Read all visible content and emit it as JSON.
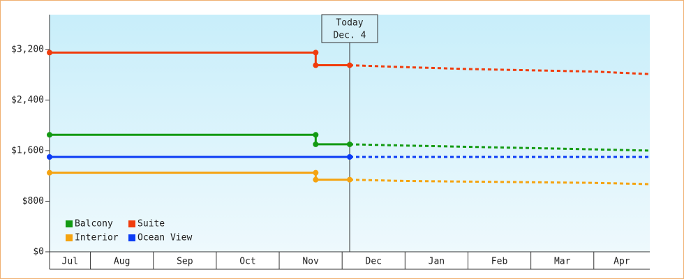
{
  "chart_data": {
    "type": "line",
    "categories": [
      "Jul",
      "Aug",
      "Sep",
      "Oct",
      "Nov",
      "Dec",
      "Jan",
      "Feb",
      "Mar",
      "Apr"
    ],
    "xlim": [
      0.35,
      9.89
    ],
    "ylim": [
      0,
      3750
    ],
    "yticks": [
      {
        "value": 0,
        "label": "$0"
      },
      {
        "value": 800,
        "label": "$800"
      },
      {
        "value": 1600,
        "label": "$1,600"
      },
      {
        "value": 2400,
        "label": "$2,400"
      },
      {
        "value": 3200,
        "label": "$3,200"
      }
    ],
    "annotation": {
      "lines": [
        "Today",
        "Dec. 4"
      ],
      "x": 5.12
    },
    "legend": "lower left",
    "series": [
      {
        "name": "Balcony",
        "color": "#139a13",
        "actual": {
          "x": [
            0.35,
            4.58,
            4.58,
            5.12
          ],
          "values": [
            1850,
            1850,
            1700,
            1700
          ]
        },
        "forecast": {
          "x": [
            5.12,
            6,
            7,
            8,
            9,
            9.89
          ],
          "values": [
            1700,
            1680,
            1660,
            1640,
            1620,
            1600
          ]
        }
      },
      {
        "name": "Suite",
        "color": "#f03c0c",
        "actual": {
          "x": [
            0.35,
            4.58,
            4.58,
            5.12
          ],
          "values": [
            3150,
            3150,
            2950,
            2950
          ]
        },
        "forecast": {
          "x": [
            5.12,
            6,
            7,
            8,
            9,
            9.89
          ],
          "values": [
            2950,
            2920,
            2890,
            2870,
            2850,
            2810
          ]
        }
      },
      {
        "name": "Interior",
        "color": "#f5a310",
        "actual": {
          "x": [
            0.35,
            4.58,
            4.58,
            5.12
          ],
          "values": [
            1250,
            1250,
            1140,
            1140
          ]
        },
        "forecast": {
          "x": [
            5.12,
            6,
            7,
            8,
            9,
            9.89
          ],
          "values": [
            1140,
            1120,
            1110,
            1100,
            1090,
            1070
          ]
        }
      },
      {
        "name": "Ocean View",
        "color": "#0b3cf5",
        "actual": {
          "x": [
            0.35,
            5.12
          ],
          "values": [
            1500,
            1500
          ]
        },
        "forecast": {
          "x": [
            5.12,
            9.89
          ],
          "values": [
            1500,
            1500
          ]
        }
      }
    ]
  }
}
